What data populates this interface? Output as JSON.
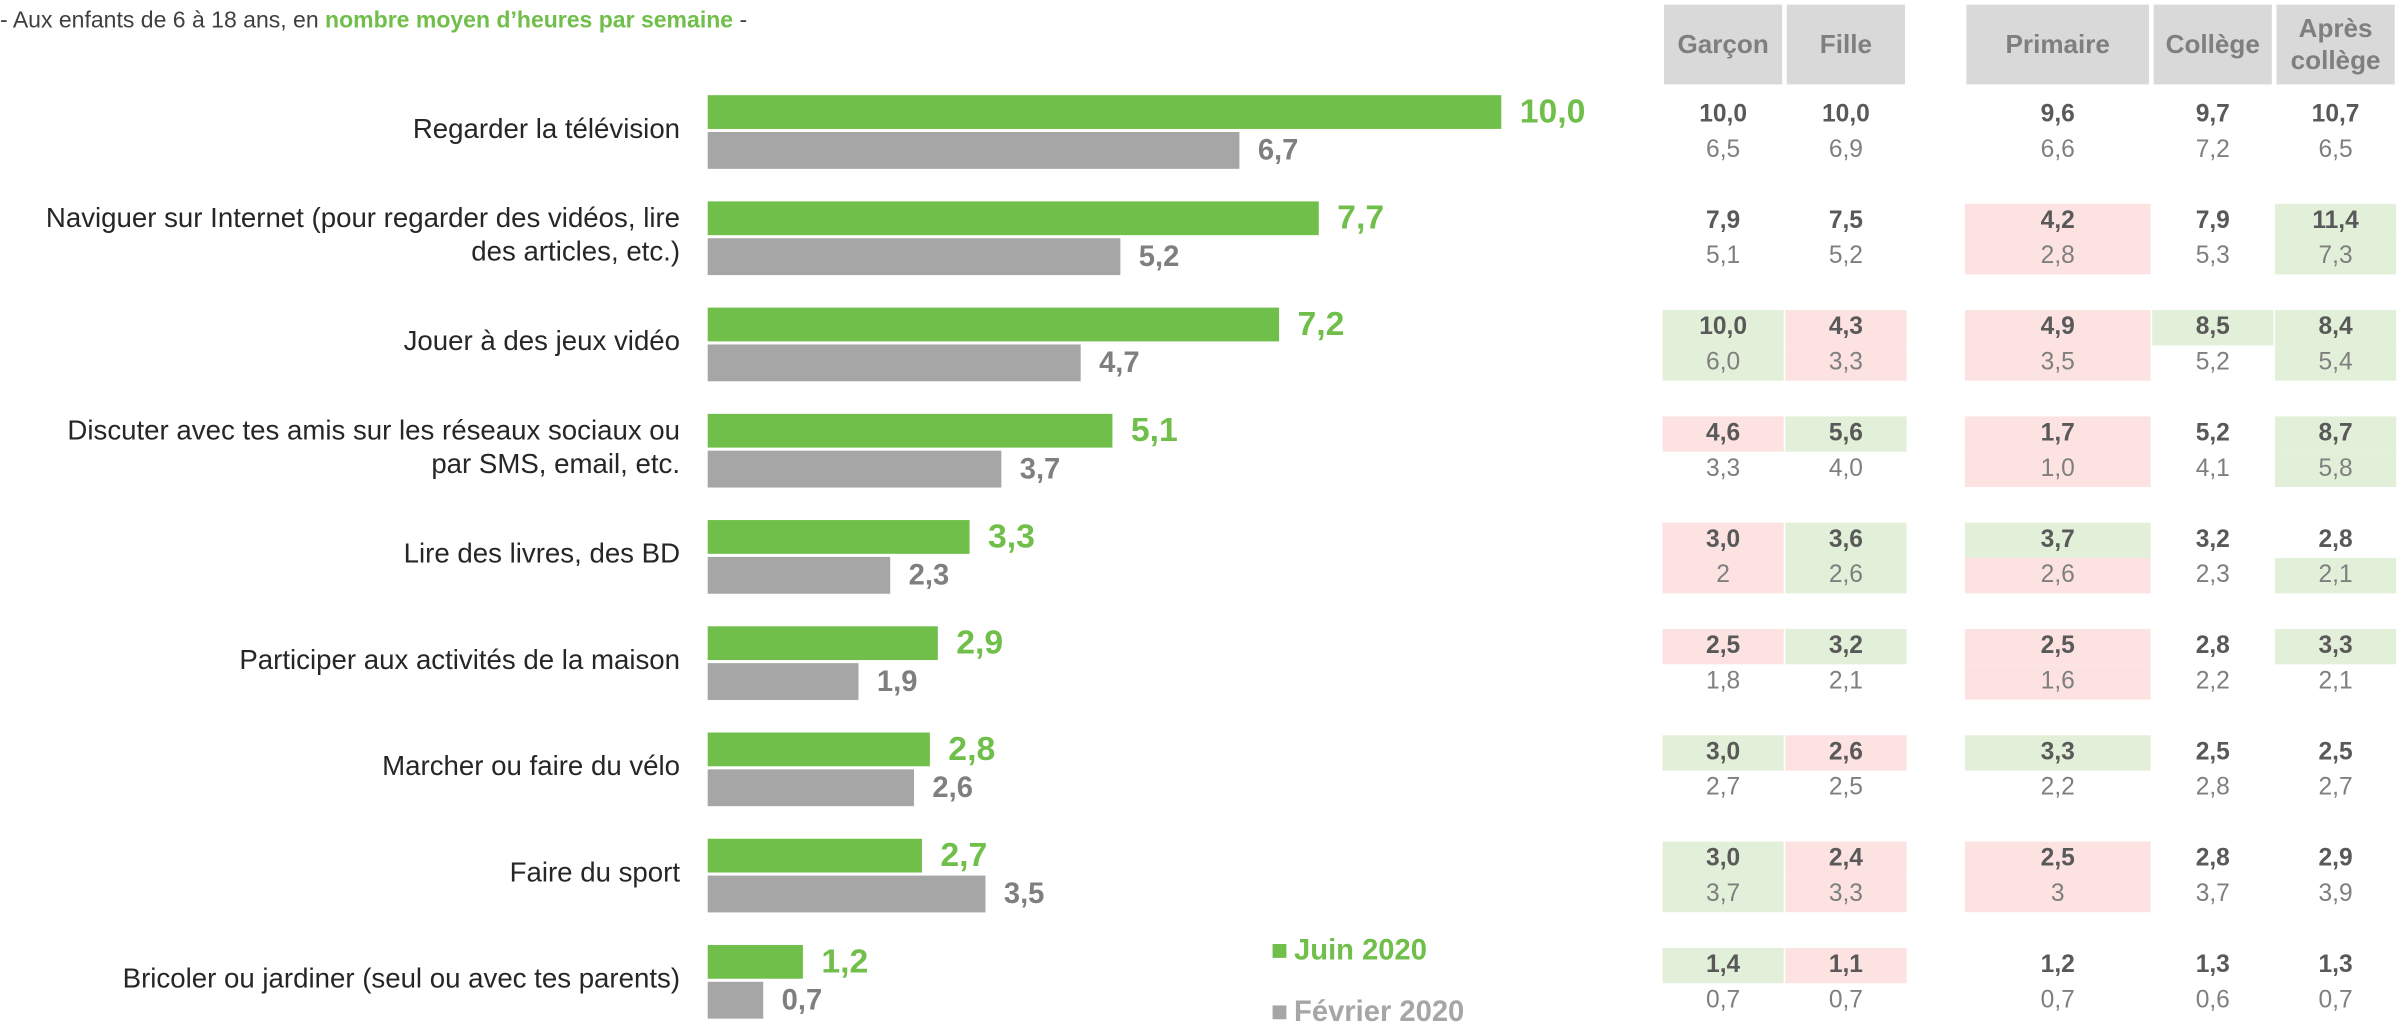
{
  "chart_data": {
    "type": "hbar",
    "subtitle": [
      "- Aux enfants de 6 à 18 ans, en ",
      "nombre moyen d’heures par semaine",
      " -"
    ],
    "categories": [
      "Regarder la télévision",
      "Naviguer sur Internet (pour regarder des vidéos, lire\ndes articles, etc.)",
      "Jouer à des jeux vidéo",
      "Discuter avec tes amis sur les réseaux sociaux ou\npar SMS, email, etc.",
      "Lire des livres, des BD",
      "Participer aux activités de la maison",
      "Marcher ou faire du vélo",
      "Faire du sport",
      "Bricoler ou jardiner (seul ou avec tes parents)"
    ],
    "series": [
      {
        "name": "Juin 2020",
        "color": "#70bf4a",
        "values": [
          10.0,
          7.7,
          7.2,
          5.1,
          3.3,
          2.9,
          2.8,
          2.7,
          1.2
        ],
        "value_labels": [
          "10,0",
          "7,7",
          "7,2",
          "5,1",
          "3,3",
          "2,9",
          "2,8",
          "2,7",
          "1,2"
        ]
      },
      {
        "name": "Février 2020",
        "color": "#a6a6a6",
        "values": [
          6.7,
          5.2,
          4.7,
          3.7,
          2.3,
          1.9,
          2.6,
          3.5,
          0.7
        ],
        "value_labels": [
          "6,7",
          "5,2",
          "4,7",
          "3,7",
          "2,3",
          "1,9",
          "2,6",
          "3,5",
          "0,7"
        ]
      }
    ]
  },
  "table": {
    "columns": [
      "Garçon",
      "Fille",
      "Primaire",
      "Collège",
      "Après\ncollège"
    ],
    "rows": [
      {
        "juin": [
          "10,0",
          "10,0",
          "9,6",
          "9,7",
          "10,7"
        ],
        "fevrier": [
          "6,5",
          "6,9",
          "6,6",
          "7,2",
          "6,5"
        ],
        "juin_fill": [
          null,
          null,
          null,
          null,
          null
        ],
        "fevrier_fill": [
          null,
          null,
          null,
          null,
          null
        ]
      },
      {
        "juin": [
          "7,9",
          "7,5",
          "4,2",
          "7,9",
          "11,4"
        ],
        "fevrier": [
          "5,1",
          "5,2",
          "2,8",
          "5,3",
          "7,3"
        ],
        "juin_fill": [
          null,
          null,
          "#fde2e2",
          null,
          "#e2f0d9"
        ],
        "fevrier_fill": [
          null,
          null,
          "#fde2e2",
          null,
          "#e2f0d9"
        ]
      },
      {
        "juin": [
          "10,0",
          "4,3",
          "4,9",
          "8,5",
          "8,4"
        ],
        "fevrier": [
          "6,0",
          "3,3",
          "3,5",
          "5,2",
          "5,4"
        ],
        "juin_fill": [
          "#e2f0d9",
          "#fde2e2",
          "#fde2e2",
          "#e2f0d9",
          "#e2f0d9"
        ],
        "fevrier_fill": [
          "#e2f0d9",
          "#fde2e2",
          "#fde2e2",
          null,
          "#e2f0d9"
        ]
      },
      {
        "juin": [
          "4,6",
          "5,6",
          "1,7",
          "5,2",
          "8,7"
        ],
        "fevrier": [
          "3,3",
          "4,0",
          "1,0",
          "4,1",
          "5,8"
        ],
        "juin_fill": [
          "#fde2e2",
          "#e2f0d9",
          "#fde2e2",
          null,
          "#e2f0d9"
        ],
        "fevrier_fill": [
          null,
          null,
          "#fde2e2",
          null,
          "#e2f0d9"
        ]
      },
      {
        "juin": [
          "3,0",
          "3,6",
          "3,7",
          "3,2",
          "2,8"
        ],
        "fevrier": [
          "2",
          "2,6",
          "2,6",
          "2,3",
          "2,1"
        ],
        "juin_fill": [
          "#fde2e2",
          "#e2f0d9",
          "#e2f0d9",
          null,
          null
        ],
        "fevrier_fill": [
          "#fde2e2",
          "#e2f0d9",
          "#fde2e2",
          null,
          "#e2f0d9"
        ]
      },
      {
        "juin": [
          "2,5",
          "3,2",
          "2,5",
          "2,8",
          "3,3"
        ],
        "fevrier": [
          "1,8",
          "2,1",
          "1,6",
          "2,2",
          "2,1"
        ],
        "juin_fill": [
          "#fde2e2",
          "#e2f0d9",
          "#fde2e2",
          null,
          "#e2f0d9"
        ],
        "fevrier_fill": [
          null,
          null,
          "#fde2e2",
          null,
          null
        ]
      },
      {
        "juin": [
          "3,0",
          "2,6",
          "3,3",
          "2,5",
          "2,5"
        ],
        "fevrier": [
          "2,7",
          "2,5",
          "2,2",
          "2,8",
          "2,7"
        ],
        "juin_fill": [
          "#e2f0d9",
          "#fde2e2",
          "#e2f0d9",
          null,
          null
        ],
        "fevrier_fill": [
          null,
          null,
          null,
          null,
          null
        ]
      },
      {
        "juin": [
          "3,0",
          "2,4",
          "2,5",
          "2,8",
          "2,9"
        ],
        "fevrier": [
          "3,7",
          "3,3",
          "3",
          "3,7",
          "3,9"
        ],
        "juin_fill": [
          "#e2f0d9",
          "#fde2e2",
          "#fde2e2",
          null,
          null
        ],
        "fevrier_fill": [
          "#e2f0d9",
          "#fde2e2",
          "#fde2e2",
          null,
          null
        ]
      },
      {
        "juin": [
          "1,4",
          "1,1",
          "1,2",
          "1,3",
          "1,3"
        ],
        "fevrier": [
          "0,7",
          "0,7",
          "0,7",
          "0,6",
          "0,7"
        ],
        "juin_fill": [
          "#e2f0d9",
          "#fde2e2",
          null,
          null,
          null
        ],
        "fevrier_fill": [
          null,
          null,
          null,
          null,
          null
        ]
      }
    ]
  }
}
